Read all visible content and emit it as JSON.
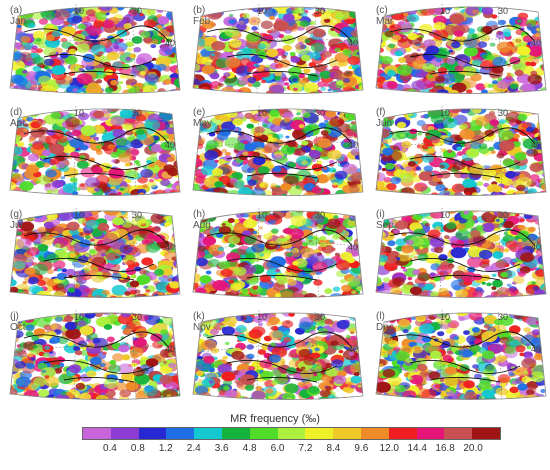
{
  "panels": [
    {
      "label": "(a)",
      "month": "Jan"
    },
    {
      "label": "(b)",
      "month": "Feb"
    },
    {
      "label": "(c)",
      "month": "Mar"
    },
    {
      "label": "(d)",
      "month": "Apr"
    },
    {
      "label": "(e)",
      "month": "May"
    },
    {
      "label": "(f)",
      "month": "Jun"
    },
    {
      "label": "(g)",
      "month": "Jul"
    },
    {
      "label": "(h)",
      "month": "Aug"
    },
    {
      "label": "(i)",
      "month": "Sep"
    },
    {
      "label": "(j)",
      "month": "Oct"
    },
    {
      "label": "(k)",
      "month": "Nov"
    },
    {
      "label": "(l)",
      "month": "Dec"
    }
  ],
  "grid_labels": {
    "lon_10": "10",
    "lon_30": "30",
    "lat_40": "40"
  },
  "colorbar": {
    "title": "MR frequency (‰)",
    "ticks": [
      "0.4",
      "0.8",
      "1.2",
      "2.4",
      "3.6",
      "4.8",
      "6.0",
      "7.2",
      "8.4",
      "9.6",
      "12.0",
      "14.4",
      "16.8",
      "20.0"
    ],
    "colors": [
      "#c864dc",
      "#8c3cd2",
      "#2828d2",
      "#1e6ee6",
      "#14c8d2",
      "#14b43c",
      "#50dc28",
      "#aaf03c",
      "#f0f028",
      "#f0c828",
      "#f08c28",
      "#f01e1e",
      "#e61478",
      "#c85050",
      "#a01414"
    ]
  }
}
